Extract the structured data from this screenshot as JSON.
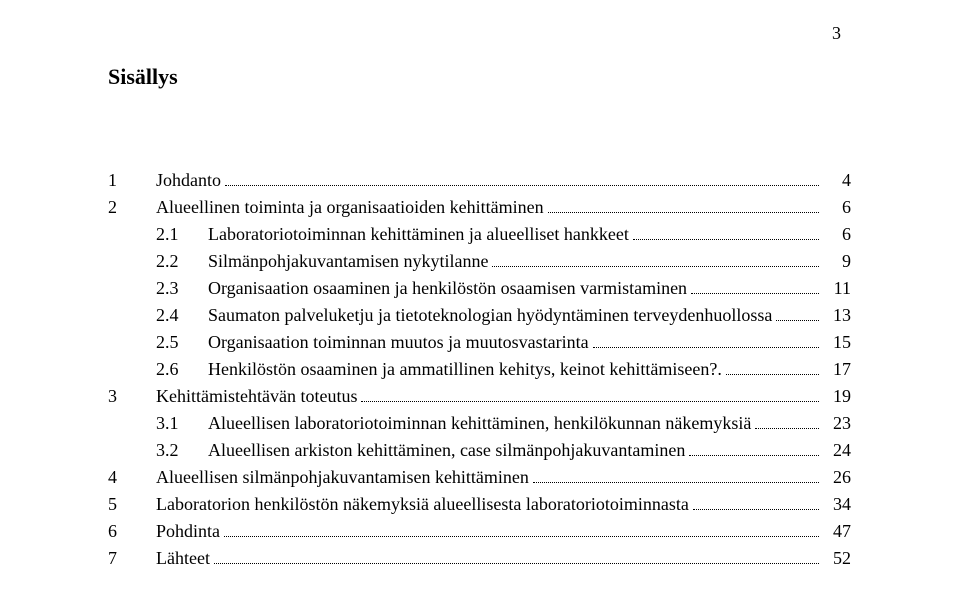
{
  "page_number_top": "3",
  "title": "Sisällys",
  "toc": [
    {
      "level": 1,
      "num": "1",
      "text": "Johdanto",
      "page": "4"
    },
    {
      "level": 1,
      "num": "2",
      "text": "Alueellinen toiminta ja organisaatioiden kehittäminen",
      "page": "6"
    },
    {
      "level": 2,
      "num": "2.1",
      "text": "Laboratoriotoiminnan kehittäminen ja alueelliset hankkeet",
      "page": "6"
    },
    {
      "level": 2,
      "num": "2.2",
      "text": "Silmänpohjakuvantamisen nykytilanne",
      "page": "9"
    },
    {
      "level": 2,
      "num": "2.3",
      "text": "Organisaation osaaminen ja henkilöstön osaamisen varmistaminen",
      "page": "11"
    },
    {
      "level": 2,
      "num": "2.4",
      "text": "Saumaton palveluketju ja tietoteknologian hyödyntäminen terveydenhuollossa",
      "page": "13"
    },
    {
      "level": 2,
      "num": "2.5",
      "text": "Organisaation toiminnan muutos ja muutosvastarinta",
      "page": "15"
    },
    {
      "level": 2,
      "num": "2.6",
      "text": "Henkilöstön osaaminen ja ammatillinen kehitys, keinot kehittämiseen?.",
      "page": "17"
    },
    {
      "level": 1,
      "num": "3",
      "text": "Kehittämistehtävän toteutus",
      "page": "19"
    },
    {
      "level": 2,
      "num": "3.1",
      "text": "Alueellisen laboratoriotoiminnan kehittäminen, henkilökunnan näkemyksiä",
      "page": "23"
    },
    {
      "level": 2,
      "num": "3.2",
      "text": "Alueellisen arkiston kehittäminen, case silmänpohjakuvantaminen",
      "page": "24"
    },
    {
      "level": 1,
      "num": "4",
      "text": "Alueellisen silmänpohjakuvantamisen kehittäminen",
      "page": "26"
    },
    {
      "level": 1,
      "num": "5",
      "text": "Laboratorion henkilöstön näkemyksiä alueellisesta laboratoriotoiminnasta",
      "page": "34"
    },
    {
      "level": 1,
      "num": "6",
      "text": "Pohdinta",
      "page": "47"
    },
    {
      "level": 1,
      "num": "7",
      "text": "Lähteet",
      "page": "52"
    }
  ],
  "styling": {
    "font_family": "Times New Roman",
    "body_fontsize_pt": 13,
    "title_fontsize_pt": 16,
    "text_color": "#000000",
    "background_color": "#ffffff",
    "leader_style": "dotted"
  }
}
